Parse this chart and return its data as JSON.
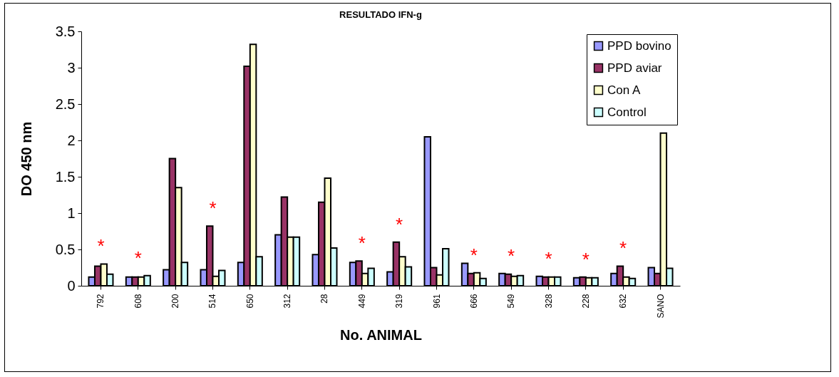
{
  "chart_data": {
    "type": "bar",
    "title": "RESULTADO IFN-g",
    "xlabel": "No. ANIMAL",
    "ylabel": "DO 450 nm",
    "categories": [
      "792",
      "608",
      "200",
      "514",
      "650",
      "312",
      "28",
      "449",
      "319",
      "961",
      "666",
      "549",
      "328",
      "228",
      "632",
      "SANO"
    ],
    "series": [
      {
        "name": "PPD bovino",
        "color": "#9999ff",
        "values": [
          0.12,
          0.12,
          0.22,
          0.22,
          0.32,
          0.7,
          0.43,
          0.32,
          0.19,
          2.05,
          0.31,
          0.17,
          0.13,
          0.11,
          0.17,
          0.25
        ]
      },
      {
        "name": "PPD aviar",
        "color": "#993366",
        "values": [
          0.27,
          0.12,
          1.75,
          0.82,
          3.02,
          1.22,
          1.15,
          0.34,
          0.6,
          0.25,
          0.17,
          0.16,
          0.12,
          0.12,
          0.27,
          0.17
        ]
      },
      {
        "name": "Con A",
        "color": "#ffffcc",
        "values": [
          0.3,
          0.12,
          1.35,
          0.13,
          3.32,
          0.67,
          1.48,
          0.17,
          0.4,
          0.15,
          0.18,
          0.13,
          0.12,
          0.11,
          0.12,
          2.1
        ]
      },
      {
        "name": "Control",
        "color": "#ccffff",
        "values": [
          0.16,
          0.14,
          0.32,
          0.21,
          0.4,
          0.67,
          0.52,
          0.24,
          0.26,
          0.51,
          0.1,
          0.14,
          0.12,
          0.11,
          0.1,
          0.24
        ]
      }
    ],
    "ylim": [
      0,
      3.5
    ],
    "yticks": [
      0,
      0.5,
      1,
      1.5,
      2,
      2.5,
      3,
      3.5
    ],
    "grid": false,
    "legend": "top right",
    "annotations": [
      {
        "text": "*",
        "x": "792",
        "y": 0.3
      },
      {
        "text": "*",
        "x": "608",
        "y": 0.14
      },
      {
        "text": "*",
        "x": "514",
        "y": 0.82
      },
      {
        "text": "*",
        "x": "449",
        "y": 0.34
      },
      {
        "text": "*",
        "x": "319",
        "y": 0.6
      },
      {
        "text": "*",
        "x": "666",
        "y": 0.18
      },
      {
        "text": "*",
        "x": "549",
        "y": 0.17
      },
      {
        "text": "*",
        "x": "328",
        "y": 0.13
      },
      {
        "text": "*",
        "x": "228",
        "y": 0.12
      },
      {
        "text": "*",
        "x": "632",
        "y": 0.27
      }
    ]
  }
}
